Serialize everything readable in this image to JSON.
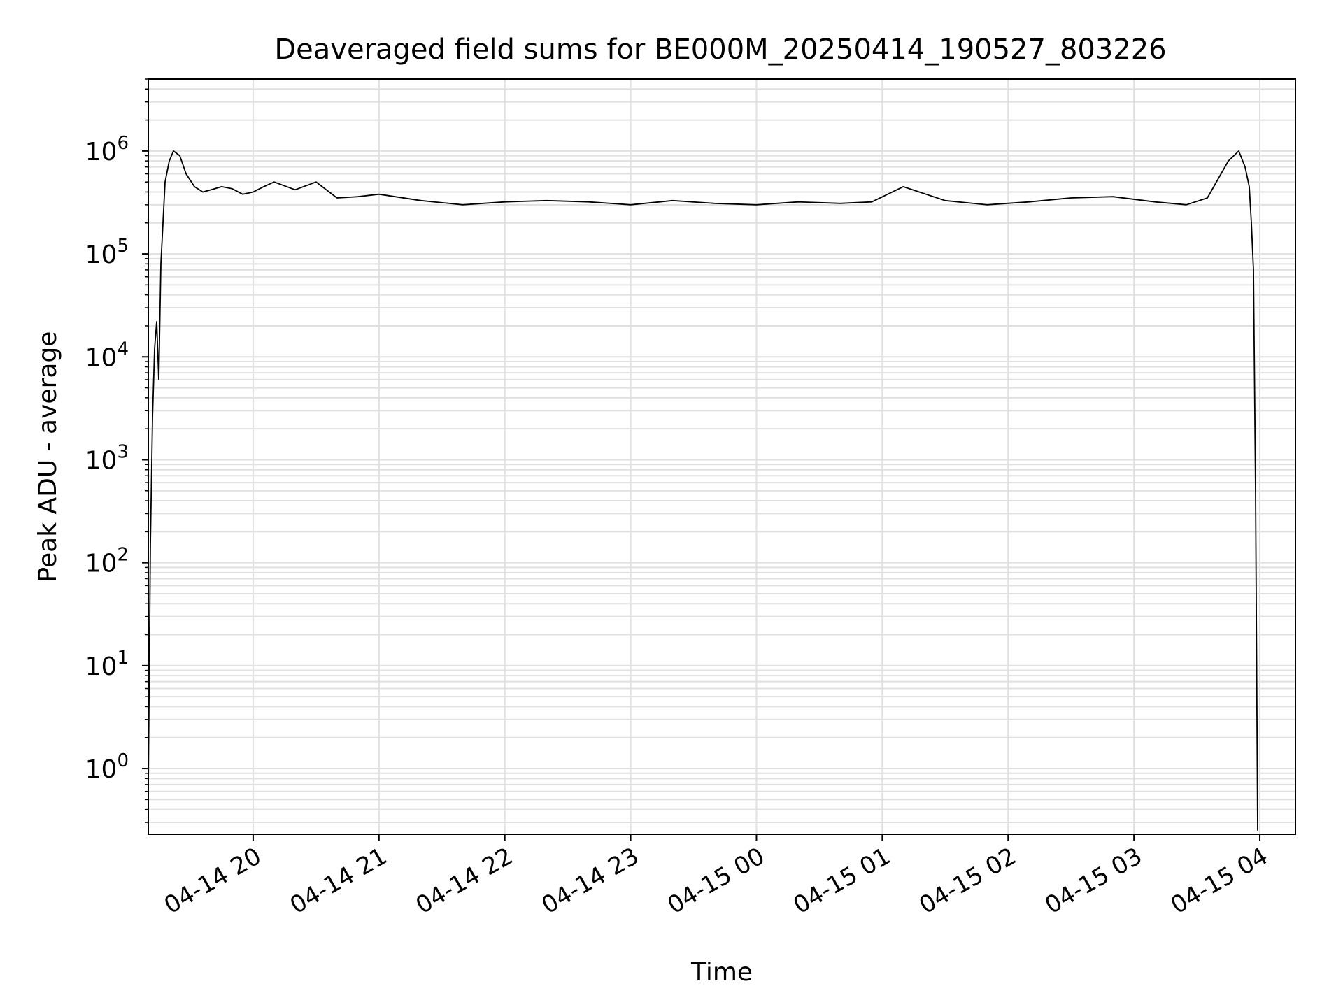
{
  "chart_data": {
    "type": "line",
    "title": "Deaveraged field sums for BE000M_20250414_190527_803226",
    "xlabel": "Time",
    "ylabel": "Peak ADU - average",
    "yscale": "log",
    "grid": "major and minor",
    "line_color": "#000000",
    "grid_color": "#e0e0e0",
    "xlim": [
      "2025-04-14 19:10",
      "2025-04-15 04:17"
    ],
    "ylim": [
      0.23,
      5000000
    ],
    "x_ticks": [
      "04-14 20",
      "04-14 21",
      "04-14 22",
      "04-14 23",
      "04-15 00",
      "04-15 01",
      "04-15 02",
      "04-15 03",
      "04-15 04"
    ],
    "y_ticks": [
      {
        "base": "10",
        "exp": "0"
      },
      {
        "base": "10",
        "exp": "1"
      },
      {
        "base": "10",
        "exp": "2"
      },
      {
        "base": "10",
        "exp": "3"
      },
      {
        "base": "10",
        "exp": "4"
      },
      {
        "base": "10",
        "exp": "5"
      },
      {
        "base": "10",
        "exp": "6"
      }
    ],
    "series": [
      {
        "x": [
          "2025-04-14 19:10",
          "2025-04-14 19:11",
          "2025-04-14 19:12",
          "2025-04-14 19:13",
          "2025-04-14 19:14",
          "2025-04-14 19:15",
          "2025-04-14 19:16",
          "2025-04-14 19:17",
          "2025-04-14 19:18",
          "2025-04-14 19:20",
          "2025-04-14 19:22",
          "2025-04-14 19:25",
          "2025-04-14 19:28",
          "2025-04-14 19:32",
          "2025-04-14 19:36",
          "2025-04-14 19:40",
          "2025-04-14 19:45",
          "2025-04-14 19:50",
          "2025-04-14 19:55",
          "2025-04-14 20:00",
          "2025-04-14 20:05",
          "2025-04-14 20:10",
          "2025-04-14 20:20",
          "2025-04-14 20:30",
          "2025-04-14 20:40",
          "2025-04-14 20:50",
          "2025-04-14 21:00",
          "2025-04-14 21:20",
          "2025-04-14 21:40",
          "2025-04-14 22:00",
          "2025-04-14 22:20",
          "2025-04-14 22:40",
          "2025-04-14 23:00",
          "2025-04-14 23:20",
          "2025-04-14 23:40",
          "2025-04-15 00:00",
          "2025-04-15 00:20",
          "2025-04-15 00:40",
          "2025-04-15 00:55",
          "2025-04-15 01:10",
          "2025-04-15 01:30",
          "2025-04-15 01:50",
          "2025-04-15 02:10",
          "2025-04-15 02:30",
          "2025-04-15 02:50",
          "2025-04-15 03:10",
          "2025-04-15 03:25",
          "2025-04-15 03:35",
          "2025-04-15 03:45",
          "2025-04-15 03:50",
          "2025-04-15 03:53",
          "2025-04-15 03:55",
          "2025-04-15 03:56",
          "2025-04-15 03:57",
          "2025-04-15 03:58",
          "2025-04-15 03:59"
        ],
        "y": [
          0.7,
          150,
          2500,
          12000,
          22000,
          6000,
          80000,
          200000,
          500000,
          800000,
          1000000,
          900000,
          600000,
          450000,
          400000,
          420000,
          450000,
          430000,
          380000,
          400000,
          450000,
          500000,
          420000,
          500000,
          350000,
          360000,
          380000,
          330000,
          300000,
          320000,
          330000,
          320000,
          300000,
          330000,
          310000,
          300000,
          320000,
          310000,
          320000,
          450000,
          330000,
          300000,
          320000,
          350000,
          360000,
          320000,
          300000,
          350000,
          800000,
          1000000,
          700000,
          450000,
          200000,
          70000,
          500,
          0.25
        ]
      }
    ]
  }
}
